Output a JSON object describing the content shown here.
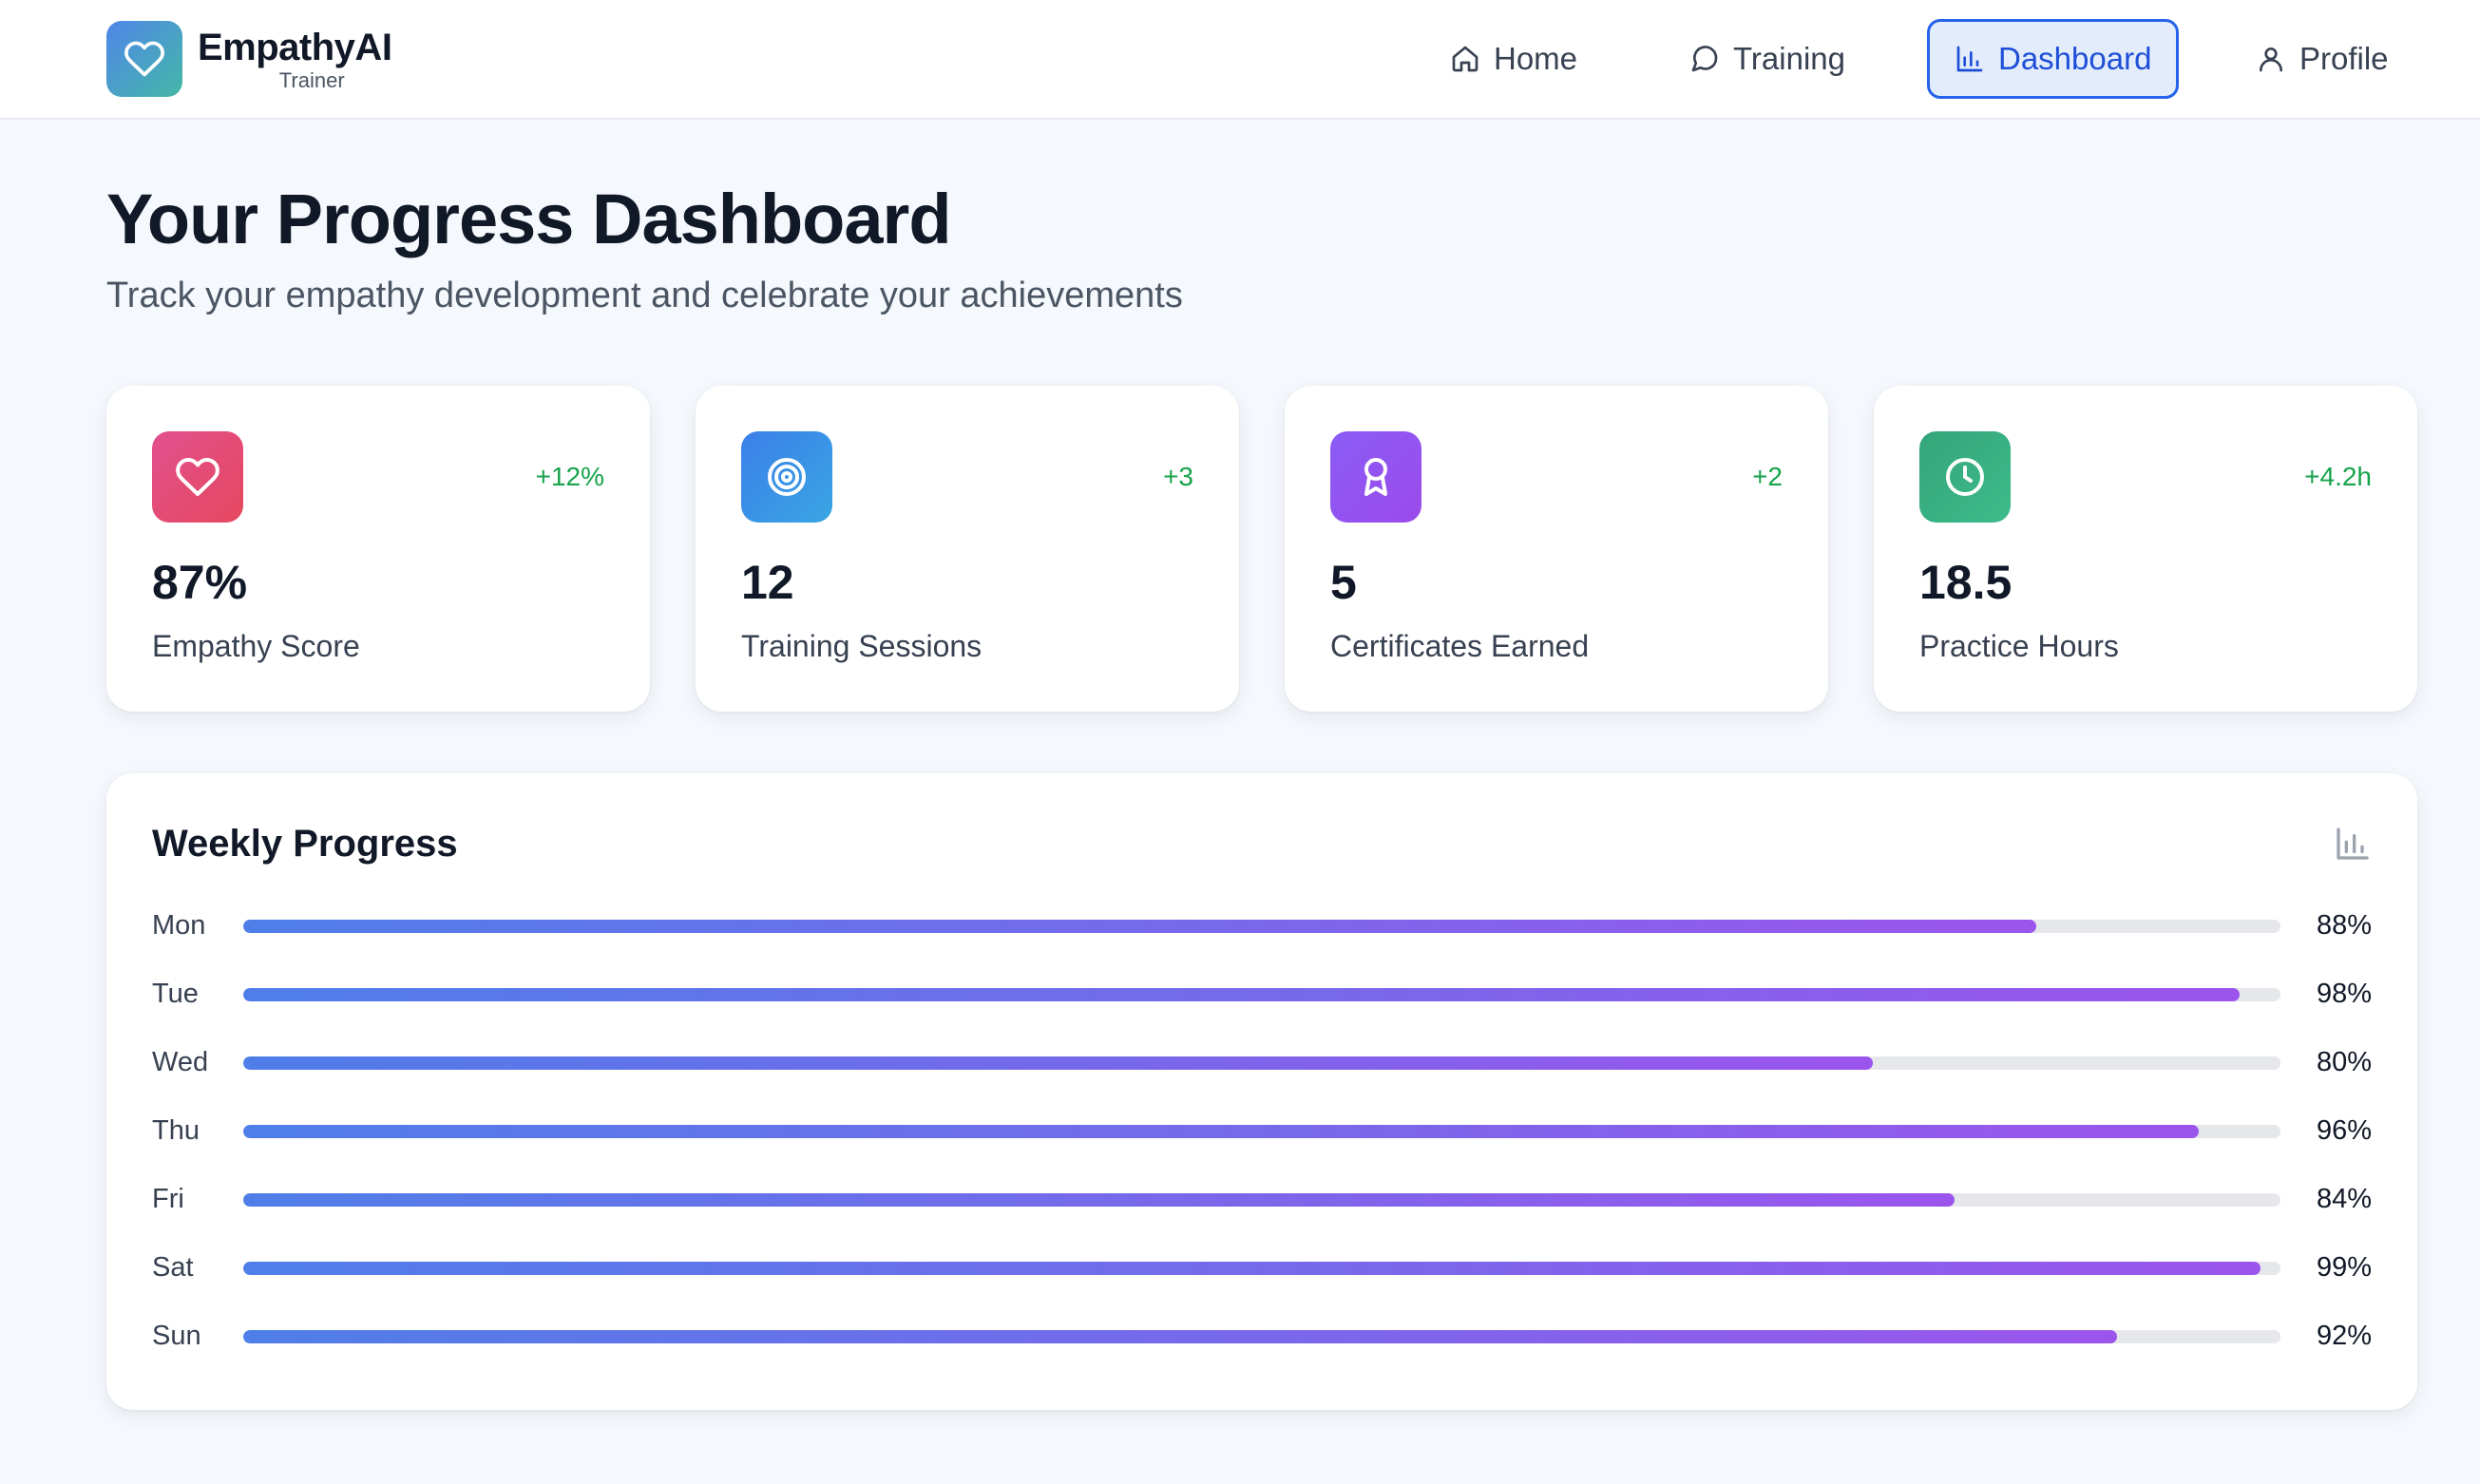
{
  "brand": {
    "name": "EmpathyAI",
    "subtitle": "Trainer"
  },
  "nav": [
    {
      "label": "Home",
      "icon": "home-icon",
      "active": false
    },
    {
      "label": "Training",
      "icon": "chat-bubble-icon",
      "active": false
    },
    {
      "label": "Dashboard",
      "icon": "bar-chart-icon",
      "active": true
    },
    {
      "label": "Profile",
      "icon": "user-icon",
      "active": false
    }
  ],
  "page": {
    "title": "Your Progress Dashboard",
    "subtitle": "Track your empathy development and celebrate your achievements"
  },
  "stats": [
    {
      "value": "87%",
      "label": "Empathy Score",
      "delta": "+12%",
      "icon": "heart-icon",
      "color": "#e5486f"
    },
    {
      "value": "12",
      "label": "Training Sessions",
      "delta": "+3",
      "icon": "target-icon",
      "color": "#3b82f6"
    },
    {
      "value": "5",
      "label": "Certificates Earned",
      "delta": "+2",
      "icon": "award-icon",
      "color": "#8b5cf6"
    },
    {
      "value": "18.5",
      "label": "Practice Hours",
      "delta": "+4.2h",
      "icon": "clock-icon",
      "color": "#10b981"
    }
  ],
  "weekly": {
    "title": "Weekly Progress",
    "icon": "bar-chart-icon",
    "rows": [
      {
        "day": "Mon",
        "value": 88,
        "label": "88%"
      },
      {
        "day": "Tue",
        "value": 98,
        "label": "98%"
      },
      {
        "day": "Wed",
        "value": 80,
        "label": "80%"
      },
      {
        "day": "Thu",
        "value": 96,
        "label": "96%"
      },
      {
        "day": "Fri",
        "value": 84,
        "label": "84%"
      },
      {
        "day": "Sat",
        "value": 99,
        "label": "99%"
      },
      {
        "day": "Sun",
        "value": 92,
        "label": "92%"
      }
    ]
  },
  "colors": {
    "accent": "#2563eb",
    "positive": "#16a34a",
    "bar_start": "#4f7ee8",
    "bar_end": "#9b55ec"
  }
}
